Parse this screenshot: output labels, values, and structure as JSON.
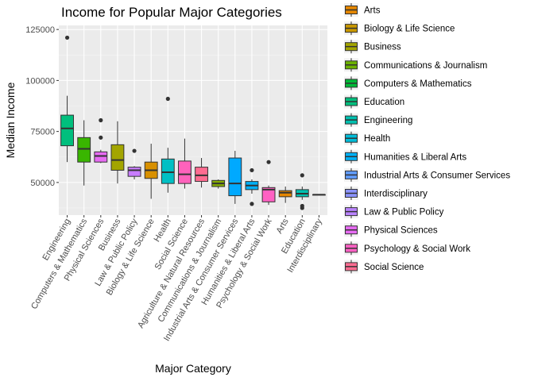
{
  "chart_data": {
    "type": "boxplot",
    "title": "Income for Popular Major Categories",
    "xlabel": "Major Category",
    "ylabel": "Median Income",
    "ylim": [
      34000,
      127000
    ],
    "yticks": [
      50000,
      75000,
      100000,
      125000
    ],
    "ytick_labels": [
      "50000",
      "75000",
      "100000",
      "125000"
    ],
    "grid": true,
    "legend_position": "right",
    "categories": [
      "Engineering",
      "Computers & Mathematics",
      "Physical Sciences",
      "Business",
      "Law & Public Policy",
      "Biology & Life Science",
      "Health",
      "Social Science",
      "Agriculture & Natural Resources",
      "Communications & Journalism",
      "Industrial Arts & Consumer Services",
      "Humanities & Liberal Arts",
      "Psychology & Social Work",
      "Arts",
      "Education",
      "Interdisciplinary"
    ],
    "boxes": [
      {
        "category": "Engineering",
        "fill": "#00BF7D",
        "lower_whisker": 60000,
        "q1": 68000,
        "median": 76500,
        "q3": 83000,
        "upper_whisker": 92500,
        "outliers": [
          121000
        ]
      },
      {
        "category": "Computers & Mathematics",
        "fill": "#39B600",
        "lower_whisker": 48500,
        "q1": 60000,
        "median": 66500,
        "q3": 72000,
        "upper_whisker": 80500,
        "outliers": []
      },
      {
        "category": "Physical Sciences",
        "fill": "#E76BF3",
        "lower_whisker": 59500,
        "q1": 60000,
        "median": 63000,
        "q3": 65000,
        "upper_whisker": 66000,
        "outliers": [
          72000,
          80500
        ]
      },
      {
        "category": "Business",
        "fill": "#A3A500",
        "lower_whisker": 49500,
        "q1": 56000,
        "median": 61000,
        "q3": 68500,
        "upper_whisker": 80000,
        "outliers": []
      },
      {
        "category": "Law & Public Policy",
        "fill": "#C77CFF",
        "lower_whisker": 51500,
        "q1": 53000,
        "median": 56000,
        "q3": 57500,
        "upper_whisker": 58000,
        "outliers": [
          65500
        ]
      },
      {
        "category": "Biology & Life Science",
        "fill": "#D89000",
        "lower_whisker": 42000,
        "q1": 52000,
        "median": 56000,
        "q3": 60000,
        "upper_whisker": 69000,
        "outliers": []
      },
      {
        "category": "Health",
        "fill": "#00BFC4",
        "lower_whisker": 45000,
        "q1": 49500,
        "median": 55000,
        "q3": 61500,
        "upper_whisker": 67000,
        "outliers": [
          91000
        ]
      },
      {
        "category": "Social Science",
        "fill": "#FF62BC",
        "lower_whisker": 47000,
        "q1": 49500,
        "median": 54000,
        "q3": 60500,
        "upper_whisker": 71500,
        "outliers": []
      },
      {
        "category": "Agriculture & Natural Resources",
        "fill": "#FF6C91",
        "lower_whisker": 47500,
        "q1": 50500,
        "median": 53500,
        "q3": 57500,
        "upper_whisker": 62000,
        "outliers": []
      },
      {
        "category": "Communications & Journalism",
        "fill": "#85AD00",
        "lower_whisker": 47000,
        "q1": 48000,
        "median": 49500,
        "q3": 51000,
        "upper_whisker": 51500,
        "outliers": []
      },
      {
        "category": "Industrial Arts & Consumer Services",
        "fill": "#00A9FF",
        "lower_whisker": 39500,
        "q1": 43500,
        "median": 49500,
        "q3": 62000,
        "upper_whisker": 65500,
        "outliers": []
      },
      {
        "category": "Humanities & Liberal Arts",
        "fill": "#00B0F6",
        "lower_whisker": 44500,
        "q1": 46500,
        "median": 48500,
        "q3": 50500,
        "upper_whisker": 51500,
        "outliers": [
          39500,
          56000
        ]
      },
      {
        "category": "Psychology & Social Work",
        "fill": "#FF61C3",
        "lower_whisker": 39000,
        "q1": 40500,
        "median": 46500,
        "q3": 47500,
        "upper_whisker": 48500,
        "outliers": [
          60000
        ]
      },
      {
        "category": "Arts",
        "fill": "#E58700",
        "lower_whisker": 40000,
        "q1": 43000,
        "median": 45000,
        "q3": 46000,
        "upper_whisker": 48000,
        "outliers": []
      },
      {
        "category": "Education",
        "fill": "#00C0AF",
        "lower_whisker": 41500,
        "q1": 43000,
        "median": 44500,
        "q3": 46500,
        "upper_whisker": 48000,
        "outliers": [
          37500,
          38500,
          53500
        ]
      },
      {
        "category": "Interdisciplinary",
        "fill": "#8B93FF",
        "lower_whisker": 44000,
        "q1": 44000,
        "median": 44000,
        "q3": 44000,
        "upper_whisker": 44000,
        "outliers": []
      }
    ],
    "legend": [
      {
        "label": "Arts",
        "color": "#E58700"
      },
      {
        "label": "Biology & Life Science",
        "color": "#C99800"
      },
      {
        "label": "Business",
        "color": "#A3A500"
      },
      {
        "label": "Communications & Journalism",
        "color": "#6BB100"
      },
      {
        "label": "Computers & Mathematics",
        "color": "#00BA38"
      },
      {
        "label": "Education",
        "color": "#00BF7D"
      },
      {
        "label": "Engineering",
        "color": "#00C0AF"
      },
      {
        "label": "Health",
        "color": "#00BCD8"
      },
      {
        "label": "Humanities & Liberal Arts",
        "color": "#00B0F6"
      },
      {
        "label": "Industrial Arts & Consumer Services",
        "color": "#619CFF"
      },
      {
        "label": "Interdisciplinary",
        "color": "#8B93FF"
      },
      {
        "label": "Law & Public Policy",
        "color": "#B983FF"
      },
      {
        "label": "Physical Sciences",
        "color": "#E76BF3"
      },
      {
        "label": "Psychology & Social Work",
        "color": "#FF61C3"
      },
      {
        "label": "Social Science",
        "color": "#FF6C91"
      }
    ]
  }
}
